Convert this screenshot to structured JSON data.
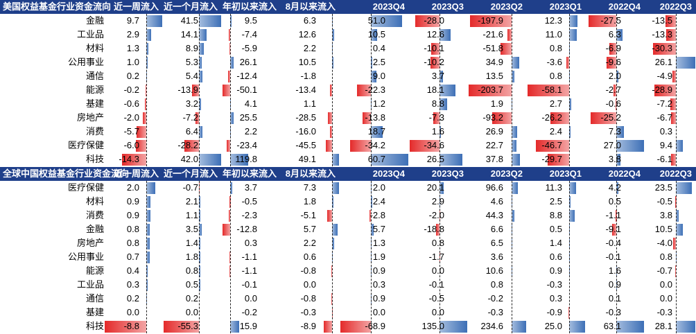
{
  "chart_data": [
    {
      "type": "table",
      "title": "美国权益基金行业资金流向",
      "columns": [
        "近一周流入",
        "近一个月流入",
        "年初以来流入",
        "8月以来流入",
        "2023Q4",
        "2023Q3",
        "2023Q2",
        "2023Q1",
        "2022Q4",
        "2022Q3"
      ],
      "rows": [
        {
          "label": "金融",
          "values": [
            9.7,
            41.5,
            9.5,
            6.3,
            51.0,
            -28.0,
            -197.9,
            12.3,
            -27.5,
            -13.5
          ]
        },
        {
          "label": "工业品",
          "values": [
            2.9,
            14.1,
            -7.4,
            12.6,
            10.5,
            12.6,
            -21.6,
            11.0,
            6.3,
            -13.3
          ]
        },
        {
          "label": "材料",
          "values": [
            1.3,
            8.9,
            -5.9,
            2.2,
            0.4,
            -10.1,
            -51.8,
            0.8,
            -6.9,
            -30.3
          ]
        },
        {
          "label": "公用事业",
          "values": [
            1.0,
            5.3,
            26.1,
            10.5,
            2.5,
            -10.2,
            34.9,
            -3.6,
            -9.6,
            26.1
          ]
        },
        {
          "label": "通信",
          "values": [
            0.2,
            5.4,
            -12.4,
            -1.8,
            9.0,
            3.7,
            13.5,
            0.8,
            2.0,
            -4.9
          ]
        },
        {
          "label": "能源",
          "values": [
            -0.2,
            -13.9,
            -50.1,
            -13.4,
            -22.3,
            18.1,
            -203.7,
            -58.1,
            -2.7,
            -28.9
          ]
        },
        {
          "label": "基建",
          "values": [
            -0.6,
            3.2,
            4.1,
            1.1,
            1.2,
            8.8,
            1.9,
            2.7,
            -0.6,
            -7.2
          ]
        },
        {
          "label": "房地产",
          "values": [
            -2.0,
            -7.2,
            25.5,
            -28.5,
            -13.8,
            -7.3,
            -93.2,
            -26.2,
            -25.2,
            -6.7
          ]
        },
        {
          "label": "消费",
          "values": [
            -5.7,
            6.4,
            2.2,
            -16.0,
            18.7,
            1.6,
            26.9,
            2.4,
            7.3,
            0.3
          ]
        },
        {
          "label": "医疗保健",
          "values": [
            -6.0,
            -28.2,
            -23.4,
            -45.5,
            -34.2,
            -34.6,
            22.7,
            -46.7,
            27.0,
            9.4
          ]
        },
        {
          "label": "科技",
          "values": [
            -14.3,
            42.0,
            119.8,
            49.1,
            60.7,
            26.5,
            37.8,
            -29.7,
            3.8,
            -6.1
          ]
        }
      ]
    },
    {
      "type": "table",
      "title": "全球中国权益基金行业资金流向",
      "columns": [
        "近一周流入",
        "近一个月流入",
        "年初以来流入",
        "8月以来流入",
        "2023Q4",
        "2023Q3",
        "2023Q2",
        "2023Q1",
        "2022Q4",
        "2022Q3"
      ],
      "rows": [
        {
          "label": "医疗保健",
          "values": [
            2.0,
            -0.7,
            3.7,
            7.3,
            2.0,
            20.1,
            96.6,
            11.3,
            4.2,
            23.5
          ]
        },
        {
          "label": "材料",
          "values": [
            0.9,
            2.1,
            -0.5,
            1.8,
            2.4,
            2.9,
            4.6,
            2.5,
            0.5,
            -0.5
          ]
        },
        {
          "label": "消费",
          "values": [
            0.9,
            1.1,
            -2.3,
            -5.1,
            -2.8,
            -2.0,
            44.3,
            8.8,
            -1.1,
            3.8
          ]
        },
        {
          "label": "金融",
          "values": [
            0.8,
            3.5,
            -12.8,
            5.7,
            5.7,
            -18.8,
            6.6,
            0.5,
            -9.1,
            10.5
          ]
        },
        {
          "label": "房地产",
          "values": [
            0.8,
            1.4,
            0.3,
            2.2,
            1.3,
            0.8,
            6.5,
            1.4,
            -0.4,
            -4.0
          ]
        },
        {
          "label": "公用事业",
          "values": [
            0.7,
            1.8,
            -1.1,
            0.6,
            1.9,
            -1.7,
            3.6,
            0.6,
            -0.1,
            0.8
          ]
        },
        {
          "label": "能源",
          "values": [
            0.4,
            0.8,
            -1.1,
            -0.8,
            0.9,
            0.0,
            10.6,
            0.9,
            1.6,
            -0.7
          ]
        },
        {
          "label": "工业品",
          "values": [
            0.3,
            0.5,
            -0.1,
            0.0,
            0.3,
            -0.1,
            0.8,
            -0.3,
            0.9,
            0.0
          ]
        },
        {
          "label": "通信",
          "values": [
            0.2,
            0.2,
            0.0,
            -0.8,
            0.9,
            -0.5,
            -0.2,
            0.3,
            0.1,
            0.0
          ]
        },
        {
          "label": "基建",
          "values": [
            0.0,
            0.0,
            -0.2,
            -0.3,
            0.0,
            0.0,
            -0.3,
            -0.9,
            -0.3,
            -0.3
          ]
        },
        {
          "label": "科技",
          "values": [
            -8.8,
            -55.3,
            15.9,
            -8.9,
            -68.9,
            135.0,
            234.6,
            25.0,
            63.1,
            28.1
          ]
        }
      ]
    }
  ],
  "colors": {
    "header_bg": "#1f3f8a",
    "positive": "#3d6fb6",
    "negative": "#e42a2a"
  }
}
